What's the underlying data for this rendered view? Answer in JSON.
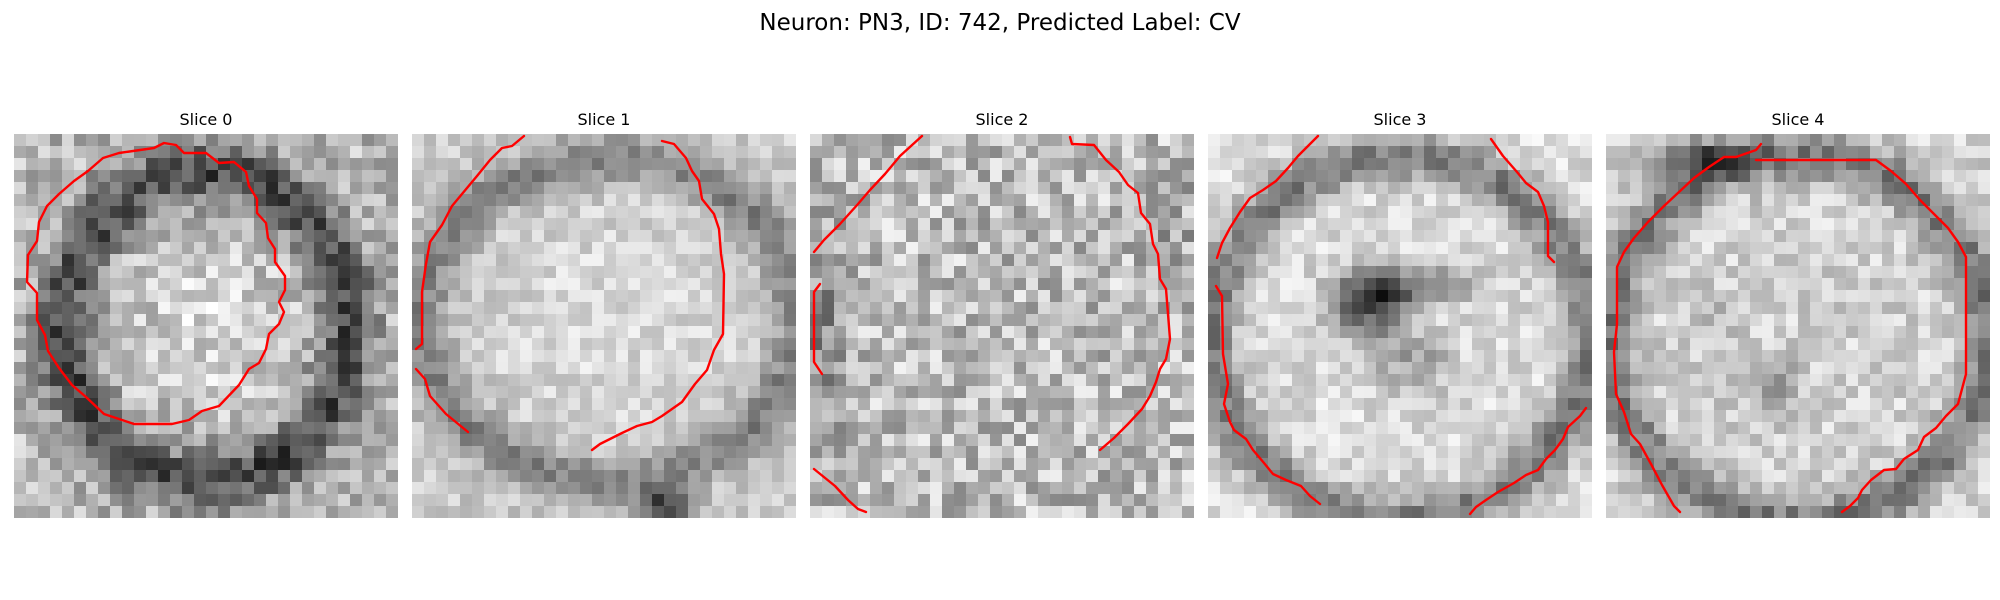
{
  "figure": {
    "title": "Neuron: PN3, ID: 742, Predicted Label: CV"
  },
  "panels": [
    {
      "title": "Slice 0"
    },
    {
      "title": "Slice 1"
    },
    {
      "title": "Slice 2"
    },
    {
      "title": "Slice 3"
    },
    {
      "title": "Slice 4"
    }
  ],
  "colors": {
    "contour": "#ff0000",
    "colormap": "grayscale"
  }
}
